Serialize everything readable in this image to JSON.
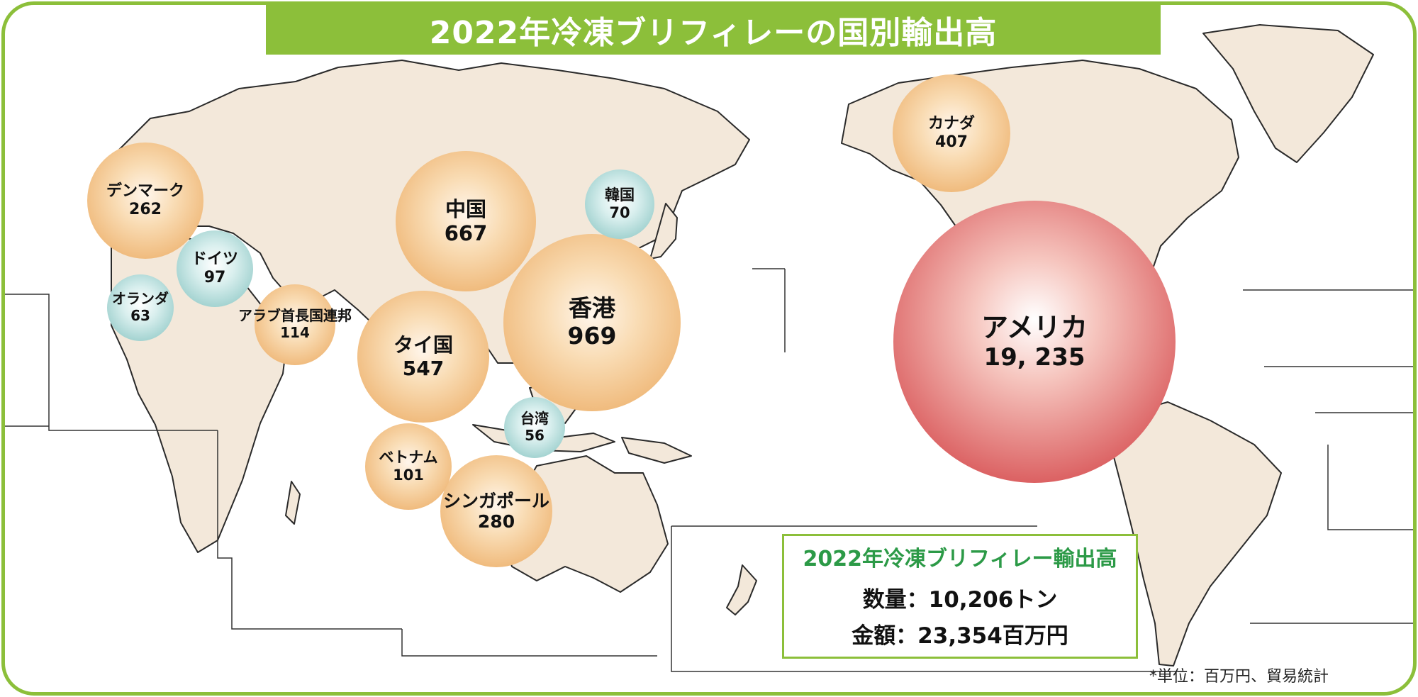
{
  "title": "2022年冷凍ブリフィレーの国別輸出高",
  "countries": [
    {
      "name": "アメリカ",
      "value": "19, 235"
    },
    {
      "name": "香港",
      "value": "969"
    },
    {
      "name": "中国",
      "value": "667"
    },
    {
      "name": "タイ国",
      "value": "547"
    },
    {
      "name": "カナダ",
      "value": "407"
    },
    {
      "name": "シンガポール",
      "value": "280"
    },
    {
      "name": "デンマーク",
      "value": "262"
    },
    {
      "name": "アラブ首長国連邦",
      "value": "114"
    },
    {
      "name": "ベトナム",
      "value": "101"
    },
    {
      "name": "ドイツ",
      "value": "97"
    },
    {
      "name": "韓国",
      "value": "70"
    },
    {
      "name": "オランダ",
      "value": "63"
    },
    {
      "name": "台湾",
      "value": "56"
    }
  ],
  "summary": {
    "title": "2022年冷凍ブリフィレー輸出高",
    "quantity": "数量：10,206トン",
    "amount": "金額：23,354百万円"
  },
  "source": "*単位：百万円、貿易統計",
  "colors": {
    "border": "#8cbf3a",
    "land": "#f3e8da",
    "large": "#eaa559",
    "small": "#7fc0bd",
    "top": "#d9585a",
    "summary_title": "#2c9a47"
  }
}
